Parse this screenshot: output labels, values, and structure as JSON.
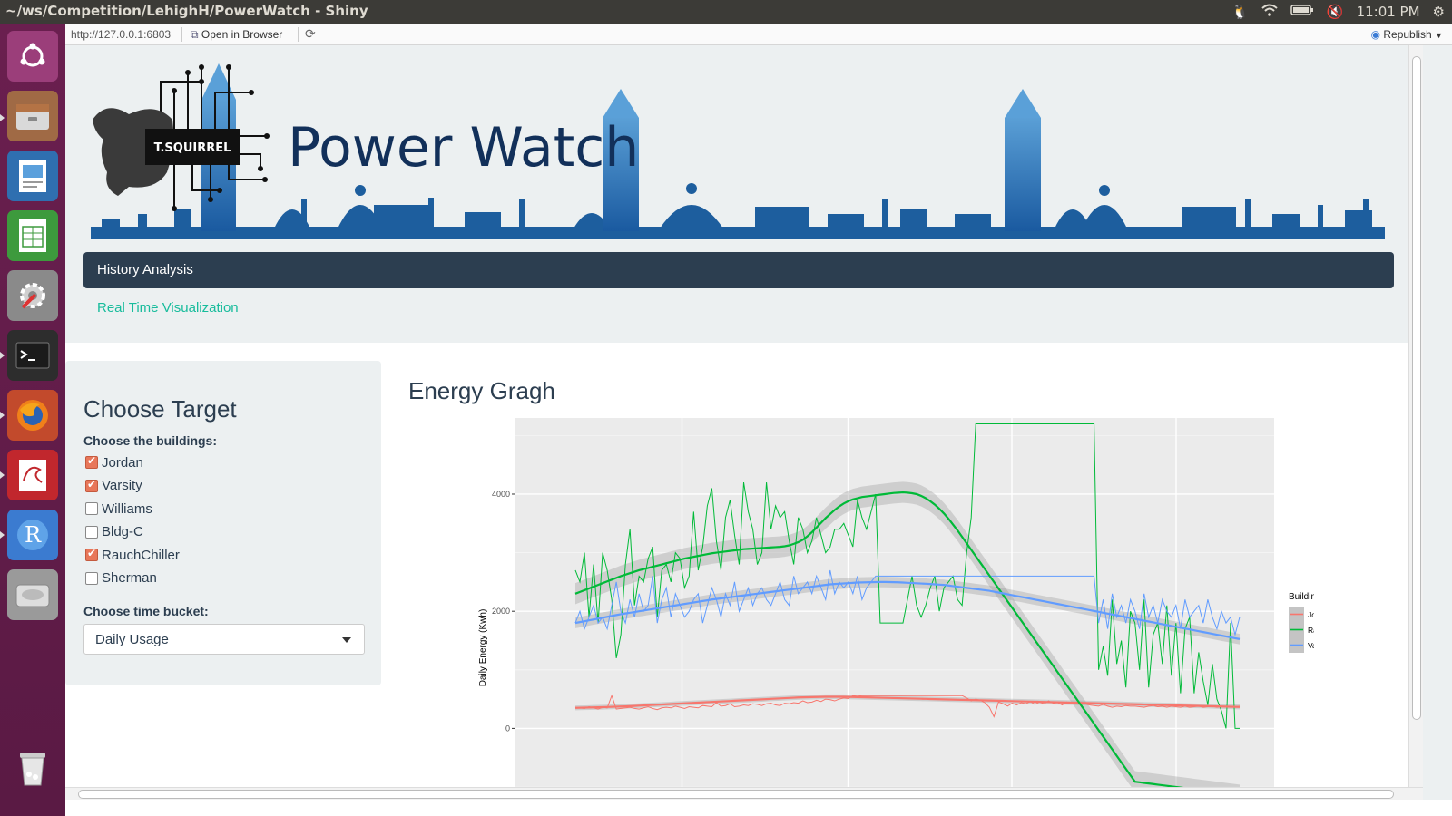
{
  "window": {
    "title": "~/ws/Competition/LehighH/PowerWatch - Shiny",
    "clock": "11:01 PM"
  },
  "launcher": {
    "items": [
      "ubuntu-dash",
      "files",
      "document-viewer",
      "spreadsheet",
      "system-settings",
      "terminal",
      "firefox",
      "evince",
      "rstudio",
      "disk",
      "trash"
    ]
  },
  "viewer": {
    "url": "http://127.0.0.1:6803",
    "open_in_browser": "Open in Browser",
    "republish": "Republish"
  },
  "app": {
    "title": "Power Watch",
    "logo_text": "T.SQUIRREL",
    "tabs": [
      "History Analysis",
      "Real Time Visualization"
    ]
  },
  "sidebar": {
    "heading": "Choose Target",
    "buildings_label": "Choose the buildings:",
    "buildings": [
      {
        "label": "Jordan",
        "checked": true
      },
      {
        "label": "Varsity",
        "checked": true
      },
      {
        "label": "Williams",
        "checked": false
      },
      {
        "label": "Bldg-C",
        "checked": false
      },
      {
        "label": "RauchChiller",
        "checked": true
      },
      {
        "label": "Sherman",
        "checked": false
      }
    ],
    "bucket_label": "Choose time bucket:",
    "bucket_value": "Daily Usage"
  },
  "main": {
    "heading": "Energy Gragh"
  },
  "colors": {
    "accent_checkbox": "#e8775a",
    "navbar": "#2c3e50",
    "link": "#18bc9c",
    "jordan": "#f8766d",
    "rauch": "#00ba38",
    "varsity": "#619cff"
  },
  "chart_data": {
    "type": "line",
    "title": "",
    "xlabel": "",
    "ylabel": "Daily Energy (Kwh)",
    "ylim": [
      -1000,
      5300
    ],
    "yticks": [
      0,
      2000,
      4000
    ],
    "legend_title": "Building",
    "legend_position": "right",
    "x": [
      0,
      5,
      10,
      15,
      20,
      25,
      30,
      35,
      40,
      45,
      50,
      55,
      60,
      65,
      70,
      75,
      80,
      85,
      90,
      95,
      100,
      105,
      110,
      115,
      120,
      125,
      130,
      135,
      140,
      145,
      150,
      155,
      160,
      165,
      170,
      175,
      180,
      185,
      190,
      195,
      200,
      205,
      210,
      215,
      220,
      225,
      230,
      235,
      240,
      245,
      250,
      255,
      260,
      265,
      270,
      275,
      280,
      285,
      290,
      295,
      300,
      305,
      310,
      315,
      320,
      325,
      330,
      335,
      340,
      345,
      350,
      355,
      360,
      365,
      370,
      375,
      380,
      385,
      390,
      395,
      400,
      405,
      410,
      415,
      420,
      425,
      430,
      435,
      440,
      445,
      450,
      455,
      460,
      465,
      470,
      475,
      480,
      485,
      490,
      495,
      500,
      505,
      510,
      515,
      520,
      525,
      530,
      535,
      540,
      545,
      550,
      555,
      560,
      565,
      570,
      575,
      580,
      585,
      590,
      595,
      600,
      605,
      610,
      615,
      620,
      625,
      630,
      635,
      640,
      645,
      650,
      655,
      660,
      665,
      670,
      675,
      680,
      685,
      690,
      695,
      700,
      705,
      710,
      715,
      720,
      725,
      730
    ],
    "series": [
      {
        "name": "Jordan",
        "values": [
          360,
          350,
          340,
          370,
          350,
          330,
          360,
          350,
          560,
          330,
          340,
          350,
          360,
          340,
          330,
          350,
          370,
          340,
          320,
          350,
          360,
          350,
          380,
          360,
          340,
          370,
          360,
          350,
          390,
          380,
          370,
          440,
          380,
          390,
          420,
          370,
          380,
          400,
          390,
          420,
          410,
          390,
          420,
          430,
          400,
          390,
          430,
          420,
          440,
          430,
          470,
          440,
          450,
          480,
          460,
          500,
          490,
          470,
          500,
          520,
          510,
          560,
          550,
          560,
          560,
          560,
          560,
          560,
          560,
          560,
          560,
          560,
          560,
          560,
          560,
          560,
          560,
          560,
          560,
          560,
          560,
          560,
          560,
          560,
          560,
          560,
          520,
          470,
          500,
          480,
          440,
          360,
          200,
          450,
          420,
          380,
          430,
          400,
          440,
          420,
          460,
          410,
          450,
          420,
          470,
          430,
          440,
          400,
          450,
          420,
          430,
          410,
          420,
          400,
          390,
          380,
          410,
          380,
          360,
          380,
          370,
          390,
          380,
          380,
          370,
          360,
          380,
          390,
          370,
          380,
          360,
          380,
          370,
          360,
          380,
          360,
          370,
          380,
          360,
          370,
          380,
          360,
          370,
          380,
          360,
          370,
          380
        ],
        "smooth": [
          350,
          352,
          354,
          356,
          358,
          360,
          362,
          365,
          368,
          371,
          374,
          377,
          380,
          384,
          388,
          392,
          396,
          400,
          404,
          408,
          412,
          416,
          420,
          424,
          428,
          432,
          436,
          440,
          444,
          448,
          452,
          456,
          460,
          464,
          468,
          472,
          476,
          480,
          484,
          488,
          492,
          496,
          500,
          504,
          508,
          512,
          516,
          520,
          524,
          528,
          530,
          532,
          534,
          536,
          538,
          540,
          540,
          540,
          540,
          540,
          538,
          536,
          534,
          532,
          530,
          528,
          526,
          524,
          522,
          520,
          518,
          516,
          514,
          512,
          510,
          508,
          506,
          504,
          502,
          500,
          498,
          496,
          494,
          492,
          490,
          488,
          486,
          484,
          482,
          480,
          478,
          476,
          474,
          472,
          470,
          468,
          466,
          464,
          462,
          460,
          458,
          456,
          454,
          452,
          450,
          448,
          446,
          444,
          442,
          440,
          438,
          436,
          434,
          432,
          430,
          428,
          426,
          424,
          422,
          420,
          418,
          416,
          414,
          412,
          410,
          408,
          406,
          404,
          402,
          400,
          398,
          396,
          394,
          392,
          390,
          388,
          386,
          384,
          382,
          380,
          378,
          376,
          374,
          372,
          370,
          368,
          366
        ]
      },
      {
        "name": "RauchChiller",
        "values": [
          2700,
          2500,
          3000,
          1900,
          2800,
          1800,
          3000,
          2700,
          2200,
          1200,
          1600,
          2800,
          3400,
          2100,
          2600,
          2500,
          2900,
          3100,
          1900,
          2700,
          2800,
          2500,
          3000,
          2900,
          2400,
          2600,
          3700,
          2700,
          3100,
          3800,
          4100,
          3200,
          2700,
          3600,
          3900,
          3300,
          2800,
          4200,
          3700,
          3400,
          2800,
          3000,
          4200,
          3400,
          3800,
          3600,
          3700,
          3200,
          2800,
          3600,
          3400,
          3000,
          3200,
          3600,
          3300,
          3000,
          3100,
          3400,
          3400,
          3500,
          3300,
          3100,
          3900,
          3600,
          3400,
          3700,
          4000,
          1800,
          1800,
          1800,
          1800,
          1800,
          1800,
          2200,
          2600,
          2100,
          1900,
          2100,
          2400,
          2600,
          2000,
          2400,
          2500,
          2600,
          2200,
          2100,
          3000,
          3600,
          5200,
          5200,
          5200,
          5200,
          5200,
          5200,
          5200,
          5200,
          5200,
          5200,
          5200,
          5200,
          5200,
          5200,
          5200,
          5200,
          5200,
          5200,
          5200,
          5200,
          5200,
          5200,
          5200,
          5200,
          5200,
          5200,
          5200,
          1000,
          1400,
          900,
          2200,
          1100,
          1500,
          700,
          2000,
          1800,
          1000,
          2200,
          700,
          1600,
          1800,
          1100,
          2100,
          900,
          1800,
          600,
          1700,
          1900,
          600,
          1300,
          800,
          400,
          1100,
          500,
          300,
          0,
          1800,
          0,
          0
        ],
        "smooth": [
          2300,
          2330,
          2360,
          2390,
          2420,
          2450,
          2480,
          2510,
          2540,
          2570,
          2600,
          2625,
          2650,
          2675,
          2700,
          2720,
          2740,
          2760,
          2780,
          2800,
          2820,
          2840,
          2860,
          2880,
          2900,
          2915,
          2930,
          2945,
          2960,
          2975,
          2990,
          3000,
          3010,
          3020,
          3030,
          3040,
          3050,
          3060,
          3065,
          3070,
          3075,
          3080,
          3085,
          3090,
          3095,
          3100,
          3110,
          3125,
          3150,
          3180,
          3220,
          3280,
          3350,
          3430,
          3510,
          3590,
          3660,
          3730,
          3790,
          3840,
          3880,
          3910,
          3930,
          3950,
          3960,
          3970,
          3980,
          3990,
          4000,
          4010,
          4020,
          4025,
          4030,
          4025,
          4015,
          4000,
          3970,
          3930,
          3880,
          3820,
          3750,
          3670,
          3580,
          3480,
          3380,
          3270,
          3160,
          3050,
          2940,
          2830,
          2720,
          2610,
          2500,
          2390,
          2280,
          2170,
          2060,
          1950,
          1840,
          1730,
          1620,
          1510,
          1400,
          1290,
          1180,
          1070,
          960,
          850,
          740,
          630,
          520,
          410,
          300,
          190,
          80,
          -30,
          -140,
          -250,
          -360,
          -470,
          -580,
          -690,
          -800,
          -910,
          -920,
          -930,
          -940,
          -950,
          -960,
          -970,
          -980,
          -990,
          -1000,
          -1010,
          -1020,
          -1030,
          -1040,
          -1050,
          -1060,
          -1070,
          -1080,
          -1090,
          -1100,
          -1110,
          -1120,
          -1130,
          -1140
        ]
      },
      {
        "name": "Varsity",
        "values": [
          1800,
          2000,
          1700,
          1900,
          2100,
          1800,
          1900,
          1700,
          2100,
          2500,
          2000,
          1800,
          2200,
          1900,
          2300,
          2000,
          2100,
          2600,
          1800,
          2200,
          2400,
          1900,
          2300,
          2100,
          1900,
          2000,
          2200,
          2300,
          1800,
          2100,
          2400,
          2200,
          1900,
          2300,
          2100,
          2500,
          2000,
          2200,
          2400,
          2100,
          2300,
          2400,
          2200,
          2100,
          2300,
          2500,
          2200,
          2100,
          2600,
          2300,
          2400,
          2500,
          2300,
          2600,
          2400,
          2200,
          2700,
          2300,
          2500,
          2400,
          2500,
          2300,
          2600,
          2200,
          2400,
          2500,
          2600,
          2600,
          2600,
          2600,
          2600,
          2600,
          2600,
          2600,
          2600,
          2600,
          2600,
          2600,
          2600,
          2600,
          2600,
          2600,
          2600,
          2600,
          2600,
          2600,
          2600,
          2600,
          2600,
          2600,
          2600,
          2600,
          2600,
          2600,
          2600,
          2600,
          2600,
          2600,
          2600,
          2600,
          2600,
          2600,
          2600,
          2600,
          2600,
          2600,
          2600,
          2600,
          2600,
          2600,
          2600,
          2600,
          2600,
          2600,
          2600,
          1800,
          2200,
          1700,
          2300,
          1900,
          2100,
          1800,
          2200,
          2000,
          1700,
          2300,
          1900,
          2100,
          1800,
          2200,
          2000,
          1900,
          2100,
          1700,
          2200,
          1900,
          2000,
          2100,
          1800,
          2200,
          1900,
          1700,
          2000,
          1800,
          1900,
          1600,
          1900
        ],
        "smooth": [
          1800,
          1815,
          1830,
          1845,
          1860,
          1875,
          1890,
          1905,
          1920,
          1935,
          1950,
          1962,
          1975,
          1987,
          2000,
          2012,
          2025,
          2037,
          2050,
          2062,
          2075,
          2087,
          2100,
          2112,
          2125,
          2137,
          2150,
          2162,
          2175,
          2187,
          2200,
          2210,
          2220,
          2230,
          2240,
          2250,
          2260,
          2270,
          2280,
          2290,
          2300,
          2310,
          2320,
          2330,
          2340,
          2350,
          2360,
          2370,
          2380,
          2390,
          2400,
          2410,
          2420,
          2430,
          2440,
          2450,
          2460,
          2465,
          2470,
          2475,
          2480,
          2485,
          2490,
          2492,
          2494,
          2496,
          2498,
          2500,
          2500,
          2498,
          2496,
          2494,
          2490,
          2486,
          2482,
          2478,
          2474,
          2470,
          2465,
          2460,
          2455,
          2450,
          2440,
          2430,
          2420,
          2410,
          2400,
          2390,
          2380,
          2370,
          2360,
          2350,
          2335,
          2320,
          2305,
          2290,
          2275,
          2260,
          2245,
          2230,
          2215,
          2200,
          2185,
          2170,
          2155,
          2140,
          2125,
          2110,
          2095,
          2080,
          2065,
          2050,
          2035,
          2020,
          2005,
          1990,
          1975,
          1960,
          1945,
          1930,
          1915,
          1900,
          1885,
          1870,
          1855,
          1840,
          1825,
          1810,
          1795,
          1780,
          1765,
          1750,
          1735,
          1720,
          1705,
          1690,
          1675,
          1660,
          1645,
          1630,
          1615,
          1600,
          1585,
          1570,
          1555,
          1540,
          1525
        ]
      }
    ]
  }
}
